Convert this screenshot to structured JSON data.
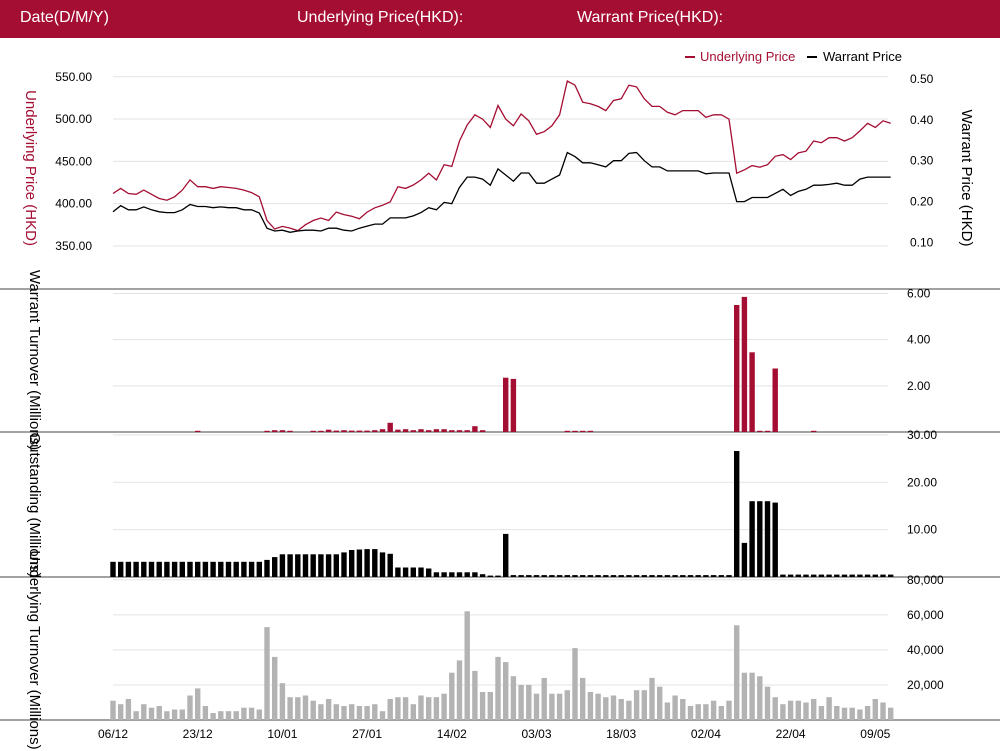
{
  "header": {
    "date_label": "Date(D/M/Y)",
    "underlying_label": "Underlying Price(HKD):",
    "warrant_label": "Warrant Price(HKD):",
    "bg_color": "#a50e33"
  },
  "chart_data": [
    {
      "type": "line",
      "title": "",
      "legend": {
        "placement": "top-right",
        "entries": [
          "Underlying Price",
          "Warrant Price"
        ]
      },
      "ylabel_left": "Underlying Price (HKD)",
      "ylabel_right": "Warrant  Price (HKD)",
      "left_ticks": [
        "550.00",
        "500.00",
        "450.00",
        "400.00",
        "350.00"
      ],
      "left_tick_values": [
        550,
        500,
        450,
        400,
        350
      ],
      "left_ylim": [
        325,
        567.5
      ],
      "right_ticks": [
        "0.50",
        "0.40",
        "0.30",
        "0.20",
        "0.10"
      ],
      "right_tick_values": [
        0.5,
        0.4,
        0.3,
        0.2,
        0.1
      ],
      "right_ylim": [
        0.04,
        0.5415
      ],
      "grid": true,
      "series": [
        {
          "name": "Underlying Price",
          "color": "#a50e33",
          "axis": "left",
          "values": [
            412,
            418,
            412,
            411,
            416,
            411,
            406,
            404,
            408,
            416,
            428,
            420,
            420,
            418,
            420,
            419,
            418,
            416,
            413,
            408,
            380,
            370,
            373,
            371,
            368,
            375,
            380,
            383,
            380,
            390,
            387,
            385,
            382,
            390,
            395,
            398,
            402,
            420,
            418,
            422,
            428,
            436,
            428,
            446,
            444,
            474,
            493,
            505,
            500,
            490,
            516,
            500,
            492,
            506,
            498,
            482,
            485,
            492,
            505,
            545,
            540,
            520,
            518,
            515,
            510,
            522,
            524,
            540,
            538,
            524,
            515,
            515,
            508,
            505,
            510,
            510,
            510,
            502,
            505,
            505,
            500,
            436,
            440,
            445,
            443,
            446,
            456,
            458,
            452,
            460,
            462,
            474,
            472,
            478,
            478,
            474,
            478,
            486,
            495,
            490,
            498,
            495
          ]
        },
        {
          "name": "Warrant Price",
          "color": "#000000",
          "axis": "right",
          "values": [
            0.175,
            0.19,
            0.18,
            0.18,
            0.187,
            0.18,
            0.175,
            0.173,
            0.173,
            0.18,
            0.193,
            0.188,
            0.188,
            0.185,
            0.187,
            0.185,
            0.185,
            0.18,
            0.18,
            0.172,
            0.135,
            0.128,
            0.13,
            0.125,
            0.128,
            0.13,
            0.13,
            0.128,
            0.135,
            0.135,
            0.13,
            0.128,
            0.135,
            0.14,
            0.145,
            0.145,
            0.16,
            0.16,
            0.16,
            0.165,
            0.173,
            0.185,
            0.18,
            0.198,
            0.195,
            0.235,
            0.26,
            0.26,
            0.255,
            0.24,
            0.28,
            0.265,
            0.25,
            0.27,
            0.27,
            0.245,
            0.245,
            0.255,
            0.265,
            0.32,
            0.31,
            0.295,
            0.295,
            0.29,
            0.285,
            0.3,
            0.3,
            0.318,
            0.32,
            0.3,
            0.285,
            0.285,
            0.275,
            0.275,
            0.275,
            0.275,
            0.275,
            0.268,
            0.27,
            0.27,
            0.27,
            0.2,
            0.2,
            0.21,
            0.21,
            0.21,
            0.22,
            0.23,
            0.215,
            0.225,
            0.23,
            0.24,
            0.24,
            0.242,
            0.245,
            0.24,
            0.24,
            0.255,
            0.26,
            0.26,
            0.26,
            0.26
          ]
        }
      ]
    },
    {
      "type": "bar",
      "ylabel": "Warrant  Turnover (Millions)",
      "ticks": [
        "6.00",
        "4.00",
        "2.00"
      ],
      "tick_values": [
        6,
        4,
        2
      ],
      "ylim": [
        0,
        6.15
      ],
      "grid": true,
      "series": [
        {
          "name": "",
          "color": "#a50e33",
          "values": [
            0,
            0,
            0,
            0,
            0,
            0,
            0,
            0,
            0,
            0,
            0,
            0.05,
            0,
            0,
            0,
            0,
            0,
            0,
            0,
            0,
            0.05,
            0.08,
            0.08,
            0.05,
            0,
            0,
            0.05,
            0.05,
            0.1,
            0.06,
            0.08,
            0.06,
            0.06,
            0.06,
            0.08,
            0.12,
            0.4,
            0.1,
            0.12,
            0.08,
            0.12,
            0.08,
            0.12,
            0.12,
            0.08,
            0.08,
            0.08,
            0.25,
            0.08,
            0,
            0,
            2.35,
            2.3,
            0,
            0,
            0,
            0,
            0,
            0,
            0.05,
            0.05,
            0.05,
            0.05,
            0,
            0,
            0,
            0,
            0,
            0,
            0,
            0,
            0,
            0,
            0,
            0,
            0,
            0,
            0,
            0,
            0,
            0,
            5.5,
            5.85,
            3.45,
            0.05,
            0.05,
            2.75,
            0,
            0,
            0,
            0,
            0.05,
            0,
            0,
            0,
            0,
            0,
            0,
            0,
            0,
            0,
            0
          ]
        }
      ]
    },
    {
      "type": "bar",
      "ylabel": "Outstanding (Millions)",
      "ticks": [
        "30.00",
        "20.00",
        "10.00"
      ],
      "tick_values": [
        30,
        20,
        10
      ],
      "ylim": [
        0,
        30.4
      ],
      "grid": true,
      "series": [
        {
          "name": "",
          "color": "#000000",
          "values": [
            3.2,
            3.2,
            3.2,
            3.2,
            3.2,
            3.2,
            3.2,
            3.2,
            3.2,
            3.2,
            3.2,
            3.2,
            3.2,
            3.2,
            3.2,
            3.2,
            3.2,
            3.2,
            3.2,
            3.2,
            3.6,
            4.2,
            4.8,
            4.8,
            4.8,
            4.8,
            4.8,
            4.8,
            4.8,
            4.8,
            5.2,
            5.7,
            5.8,
            5.9,
            5.9,
            5.2,
            4.9,
            2,
            2,
            2,
            2,
            1.8,
            1,
            1,
            1,
            1,
            1,
            1,
            0.6,
            0.3,
            0.3,
            9.1,
            0.4,
            0.4,
            0.4,
            0.4,
            0.4,
            0.4,
            0.4,
            0.4,
            0.4,
            0.4,
            0.4,
            0.4,
            0.4,
            0.4,
            0.4,
            0.4,
            0.4,
            0.4,
            0.4,
            0.4,
            0.4,
            0.4,
            0.4,
            0.4,
            0.4,
            0.4,
            0.4,
            0.4,
            0.4,
            26.6,
            7.2,
            16,
            16,
            16,
            15.7,
            0.5,
            0.5,
            0.5,
            0.5,
            0.5,
            0.5,
            0.5,
            0.5,
            0.5,
            0.5,
            0.5,
            0.5,
            0.5,
            0.5,
            0.5
          ]
        }
      ]
    },
    {
      "type": "bar",
      "ylabel": "Underlying Turnover (Millions)",
      "ticks": [
        "80,000",
        "60,000",
        "40,000",
        "20,000"
      ],
      "tick_values": [
        80000,
        60000,
        40000,
        20000
      ],
      "ylim": [
        0,
        81000
      ],
      "grid": true,
      "series": [
        {
          "name": "",
          "color": "#b3b3b3",
          "values": [
            11000,
            9000,
            12000,
            5000,
            9000,
            7000,
            8000,
            5000,
            6000,
            6000,
            14000,
            18000,
            8000,
            4000,
            5000,
            5000,
            5000,
            7000,
            7000,
            6000,
            53000,
            36000,
            21000,
            13000,
            13000,
            14000,
            11000,
            9000,
            12000,
            9000,
            8000,
            9000,
            8000,
            8000,
            9000,
            5000,
            12000,
            13000,
            13000,
            9000,
            14000,
            13000,
            13000,
            15000,
            27000,
            34000,
            62000,
            28000,
            16000,
            16000,
            36000,
            33000,
            25000,
            20000,
            20000,
            15000,
            24000,
            15000,
            15000,
            17000,
            41000,
            24000,
            16000,
            15000,
            13000,
            14000,
            12000,
            11000,
            17000,
            17000,
            24000,
            19000,
            10000,
            14000,
            12000,
            8000,
            9000,
            9000,
            11000,
            8000,
            11000,
            54000,
            27000,
            27000,
            25000,
            19000,
            13000,
            9000,
            11000,
            11000,
            10000,
            12000,
            8000,
            13000,
            8000,
            7000,
            7000,
            6000,
            8000,
            12000,
            10000,
            7000
          ]
        }
      ]
    }
  ],
  "x_axis": {
    "ticks": [
      "06/12",
      "23/12",
      "10/01",
      "27/01",
      "14/02",
      "03/03",
      "18/03",
      "02/04",
      "22/04",
      "09/05"
    ],
    "tick_index": [
      0,
      11,
      22,
      33,
      44,
      55,
      66,
      77,
      88,
      99
    ]
  }
}
